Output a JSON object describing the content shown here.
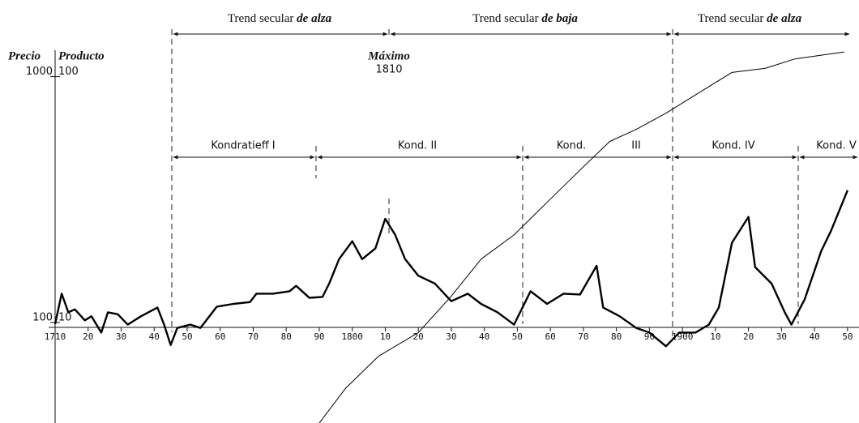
{
  "chart_data": {
    "type": "line",
    "ylabel": "Precio",
    "y2label": "Producto",
    "log_scale": true,
    "grid": false,
    "xlim": [
      1710,
      1952
    ],
    "xticks": [
      {
        "value": 1710,
        "label": "1710"
      },
      {
        "value": 1720,
        "label": "20"
      },
      {
        "value": 1730,
        "label": "30"
      },
      {
        "value": 1740,
        "label": "40"
      },
      {
        "value": 1750,
        "label": "50"
      },
      {
        "value": 1760,
        "label": "60"
      },
      {
        "value": 1770,
        "label": "70"
      },
      {
        "value": 1780,
        "label": "80"
      },
      {
        "value": 1790,
        "label": "90"
      },
      1800,
      {
        "value": 1810,
        "label": "10"
      },
      {
        "value": 1820,
        "label": "20"
      },
      {
        "value": 1830,
        "label": "30"
      },
      {
        "value": 1840,
        "label": "40"
      },
      {
        "value": 1850,
        "label": "50"
      },
      {
        "value": 1860,
        "label": "60"
      },
      {
        "value": 1870,
        "label": "70"
      },
      {
        "value": 1880,
        "label": "80"
      },
      {
        "value": 1890,
        "label": "90"
      },
      1900,
      {
        "value": 1910,
        "label": "10"
      },
      {
        "value": 1920,
        "label": "20"
      },
      {
        "value": 1930,
        "label": "30"
      },
      {
        "value": 1940,
        "label": "40"
      },
      {
        "value": 1950,
        "label": "50"
      }
    ],
    "ylim": [
      39,
      1300
    ],
    "yticks": [
      100,
      1000
    ],
    "y2lim": [
      3.9,
      130
    ],
    "y2ticks": [
      10,
      100
    ],
    "series": [
      {
        "name": "Precio",
        "color": "#000000",
        "axis": "y",
        "x": [
          1710,
          1712,
          1714,
          1716,
          1719,
          1721,
          1724,
          1726,
          1729,
          1732,
          1736,
          1741,
          1743,
          1745,
          1747,
          1751,
          1754,
          1759,
          1764,
          1769,
          1771,
          1776,
          1781,
          1783,
          1787,
          1791,
          1793,
          1796,
          1800,
          1803,
          1807,
          1810,
          1813,
          1816,
          1820,
          1825,
          1830,
          1835,
          1839,
          1844,
          1849,
          1854,
          1859,
          1864,
          1869,
          1874,
          1876,
          1881,
          1886,
          1890,
          1895,
          1899,
          1904,
          1908,
          1911,
          1915,
          1920,
          1922,
          1927,
          1931,
          1933,
          1937,
          1942,
          1945,
          1950
        ],
        "values": [
          98.5,
          131,
          110,
          113,
          102,
          106,
          91,
          110,
          108,
          98,
          106,
          115,
          98,
          81,
          95,
          98,
          95,
          116,
          119,
          121,
          131,
          131,
          134,
          141,
          126,
          127,
          144,
          181,
          214,
          181,
          200,
          264,
          227,
          181,
          155,
          144,
          122,
          131,
          119,
          110,
          98,
          134,
          119,
          131,
          130,
          170,
          115,
          106,
          95,
          91,
          80,
          91,
          91,
          98,
          115,
          211,
          269,
          168,
          144,
          110,
          98,
          124,
          195,
          236,
          345
        ]
      },
      {
        "name": "Producto",
        "color": "#000000",
        "axis": "y2",
        "x": [
          1790,
          1798,
          1808,
          1820,
          1830,
          1839,
          1849,
          1859,
          1869,
          1878,
          1886,
          1895,
          1905,
          1915,
          1925,
          1934,
          1949
        ],
        "values": [
          3.9,
          5.4,
          7.3,
          9.1,
          12.8,
          18.1,
          22.7,
          30.8,
          41.7,
          54.5,
          61,
          71,
          86,
          104,
          108,
          118,
          126
        ]
      }
    ],
    "annotations": {
      "trends": [
        {
          "text": "Trend secular",
          "emph": "de alza"
        },
        {
          "text": "Trend secular",
          "emph": "de baja"
        },
        {
          "text": "Trend secular",
          "emph": "de alza"
        }
      ],
      "maximum": {
        "label": "Máximo",
        "year": "1810"
      },
      "waves": [
        "Kondratieff I",
        "Kond. II",
        "Kond.",
        "III",
        "Kond. IV",
        "Kond. V"
      ]
    }
  }
}
